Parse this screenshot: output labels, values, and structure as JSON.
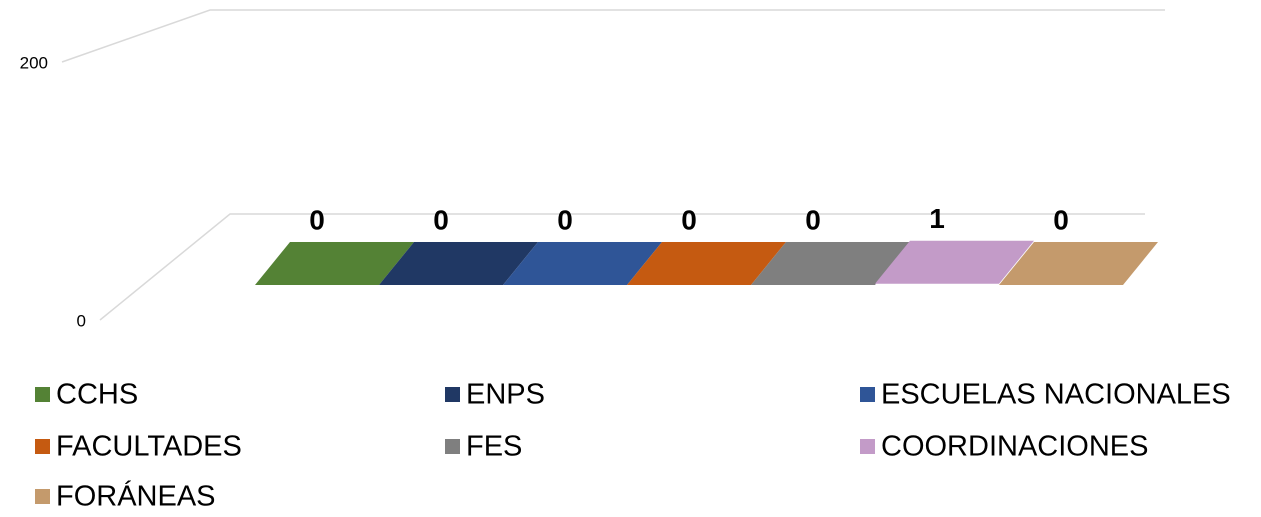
{
  "chart_data": {
    "type": "bar3d",
    "series": [
      {
        "name": "CCHS",
        "color": "#548235",
        "values": [
          0
        ]
      },
      {
        "name": "ENPS",
        "color": "#203864",
        "values": [
          0
        ]
      },
      {
        "name": "ESCUELAS NACIONALES",
        "color": "#2f5597",
        "values": [
          0
        ]
      },
      {
        "name": "FACULTADES",
        "color": "#c55a11",
        "values": [
          0
        ]
      },
      {
        "name": "FES",
        "color": "#7f7f7f",
        "values": [
          0
        ]
      },
      {
        "name": "COORDINACIONES",
        "color": "#c39bc8",
        "values": [
          1
        ]
      },
      {
        "name": "FORÁNEAS",
        "color": "#c49a6c",
        "values": [
          0
        ]
      }
    ],
    "ylim": [
      0,
      200
    ],
    "yticks": [
      0,
      200
    ],
    "grid": true,
    "legend": "bottom"
  }
}
